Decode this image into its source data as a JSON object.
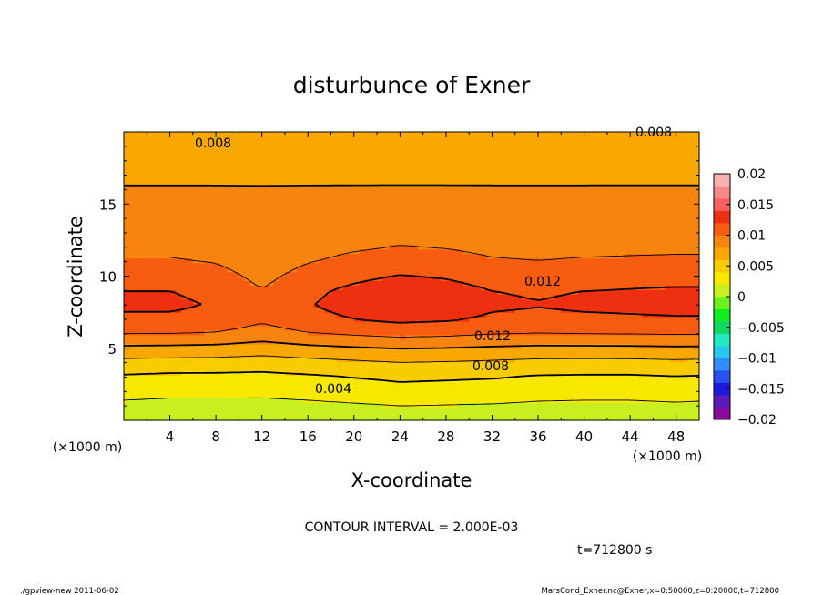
{
  "chart_data": {
    "type": "heatmap",
    "title": "disturbunce of Exner",
    "xlabel": "X-coordinate",
    "ylabel": "Z-coordinate",
    "x_unit_left": "(×1000 m)",
    "x_unit_right": "(×1000 m)",
    "xlim": [
      0,
      50
    ],
    "ylim": [
      0,
      20
    ],
    "x_ticks": [
      4,
      8,
      12,
      16,
      20,
      24,
      28,
      32,
      36,
      40,
      44,
      48
    ],
    "y_ticks": [
      5,
      10,
      15
    ],
    "colorbar": {
      "ticks": [
        "0.02",
        "0.015",
        "0.01",
        "0.005",
        "0",
        "−0.005",
        "−0.01",
        "−0.015",
        "−0.02"
      ],
      "range": [
        -0.02,
        0.02
      ],
      "colors": [
        "#8a0a9c",
        "#5a1ab8",
        "#1c1cd8",
        "#2b50f0",
        "#2f8ef8",
        "#27c8f0",
        "#20e8c0",
        "#10d860",
        "#10ee20",
        "#6cf020",
        "#c8f020",
        "#f8e800",
        "#f8cc00",
        "#f8a800",
        "#f88410",
        "#f85c10",
        "#ee3010",
        "#f86060",
        "#f88888",
        "#f8b0b0"
      ]
    },
    "field": {
      "z": [
        0,
        1,
        2,
        3,
        4,
        5,
        6,
        7,
        8,
        9,
        10,
        11,
        12,
        13,
        14,
        15,
        16,
        17,
        18,
        19,
        20
      ],
      "x_knots": [
        0,
        4,
        8,
        12,
        16,
        20,
        24,
        28,
        32,
        36,
        40,
        44,
        48,
        50
      ],
      "profile": [
        0.0008,
        0.0014,
        0.0025,
        0.0035,
        0.0052,
        0.0074,
        0.0098,
        0.0114,
        0.0119,
        0.0116,
        0.0108,
        0.0099,
        0.0094,
        0.0092,
        0.0091,
        0.0088,
        0.0082,
        0.0075,
        0.0069,
        0.0066,
        0.0065
      ],
      "low_amplitude": [
        0.0002,
        0,
        0,
        0,
        0.0002,
        0.0005,
        0.0008,
        0.0007,
        0.0006,
        0.0003,
        0.0002,
        0.0002,
        0.0004,
        0.0003
      ],
      "upper_amplitude": [
        0.0004,
        0.0004,
        0,
        -0.0015,
        0,
        0.0008,
        0.0014,
        0.0011,
        0.0004,
        0.0002,
        0.0004,
        0.0005,
        0.0006,
        0.0006
      ]
    },
    "contour_levels": [
      0.002,
      0.004,
      0.006,
      0.008,
      0.01,
      0.012
    ],
    "contour_labels": [
      "0.008",
      "0.008",
      "0.012",
      "0.012",
      "0.008",
      "0.004"
    ]
  },
  "contour_interval_text": "CONTOUR INTERVAL = 2.000E-03",
  "time_text": "t=712800 s",
  "footer_left": "./gpview-new  2011-06-02",
  "footer_right": "MarsCond_Exner.nc@Exner,x=0:50000,z=0:20000,t=712800"
}
